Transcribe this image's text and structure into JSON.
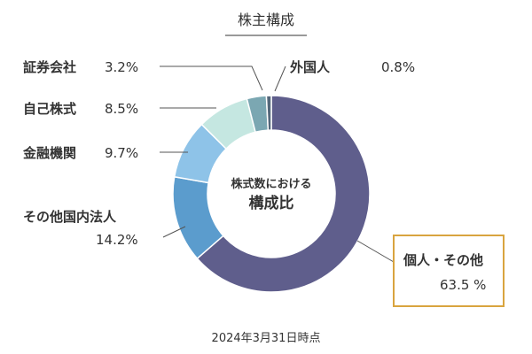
{
  "chart_data": {
    "type": "pie",
    "title": "株主構成",
    "center_label_line1": "株式数における",
    "center_label_line2": "構成比",
    "footnote": "2024年3月31日時点",
    "slices": [
      {
        "name": "個人・その他",
        "value": 63.5,
        "value_label": "63.5 %",
        "color": "#5f5e8c"
      },
      {
        "name": "その他国内法人",
        "value": 14.2,
        "value_label": "14.2%",
        "color": "#5b9ccd"
      },
      {
        "name": "金融機関",
        "value": 9.7,
        "value_label": "9.7%",
        "color": "#8ec3e8"
      },
      {
        "name": "自己株式",
        "value": 8.5,
        "value_label": "8.5%",
        "color": "#c5e7e1"
      },
      {
        "name": "証券会社",
        "value": 3.2,
        "value_label": "3.2%",
        "color": "#7ba7b2"
      },
      {
        "name": "外国人",
        "value": 0.8,
        "value_label": "0.8%",
        "color": "#54677a"
      }
    ],
    "highlight_color": "#d9a43f"
  }
}
